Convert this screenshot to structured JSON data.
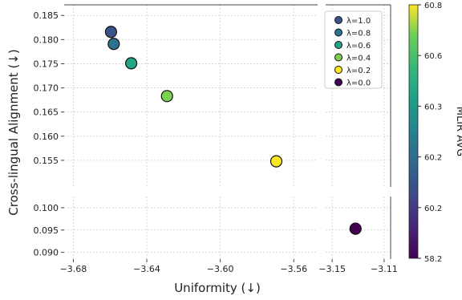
{
  "chart_data": {
    "type": "scatter",
    "xlabel": "Uniformity (↓)",
    "ylabel": "Cross-lingual Alignment (↓)",
    "x_break": {
      "left_range": [
        -3.685,
        -3.547
      ],
      "right_range": [
        -3.155,
        -3.105
      ]
    },
    "y_break": {
      "top_range": [
        0.1495,
        0.1872
      ],
      "bottom_range": [
        0.0885,
        0.1025
      ]
    },
    "x_ticks_left": [
      -3.68,
      -3.64,
      -3.6,
      -3.56
    ],
    "x_tick_labels_left": [
      "−3.68",
      "−3.64",
      "−3.60",
      "−3.56"
    ],
    "x_ticks_right": [
      -3.15,
      -3.11
    ],
    "x_tick_labels_right": [
      "−3.15",
      "−3.11"
    ],
    "y_ticks_top": [
      0.155,
      0.16,
      0.165,
      0.17,
      0.175,
      0.18,
      0.185
    ],
    "y_tick_labels_top": [
      "0.155",
      "0.160",
      "0.165",
      "0.170",
      "0.175",
      "0.180",
      "0.185"
    ],
    "y_ticks_bottom": [
      0.09,
      0.095,
      0.1
    ],
    "y_tick_labels_bottom": [
      "0.090",
      "0.095",
      "0.100"
    ],
    "grid": true,
    "legend_position": "top-right",
    "series": [
      {
        "name": "λ=1.0",
        "x": -3.6595,
        "y": 0.1816,
        "color": "#3b528b"
      },
      {
        "name": "λ=0.8",
        "x": -3.658,
        "y": 0.1791,
        "color": "#2c728e"
      },
      {
        "name": "λ=0.6",
        "x": -3.6485,
        "y": 0.1751,
        "color": "#21a585"
      },
      {
        "name": "λ=0.4",
        "x": -3.629,
        "y": 0.1683,
        "color": "#7ad151"
      },
      {
        "name": "λ=0.2",
        "x": -3.5695,
        "y": 0.1548,
        "color": "#fde725"
      },
      {
        "name": "λ=0.0",
        "x": -3.132,
        "y": 0.0953,
        "color": "#440154"
      }
    ],
    "colorbar": {
      "label": "MLIR AVG",
      "tick_labels": [
        "60.8",
        "60.6",
        "60.3",
        "60.2",
        "60.2",
        "58.2"
      ]
    }
  }
}
